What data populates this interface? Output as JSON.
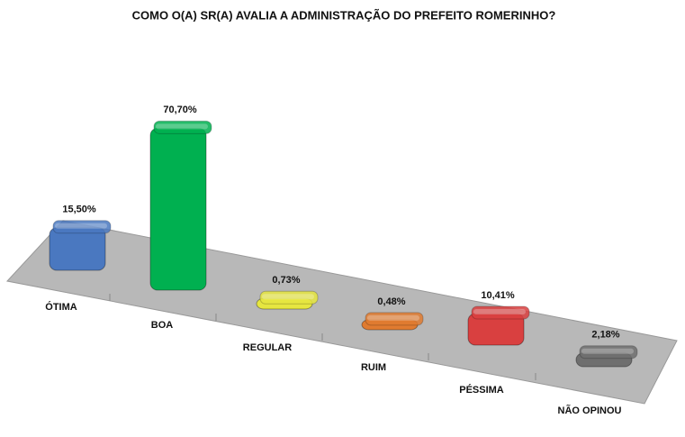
{
  "chart_data": {
    "type": "bar3d",
    "title": "COMO O(A) SR(A) AVALIA A ADMINISTRAÇÃO DO PREFEITO ROMERINHO?",
    "categories": [
      "ÓTIMA",
      "BOA",
      "REGULAR",
      "RUIM",
      "PÉSSIMA",
      "NÃO OPINOU"
    ],
    "values": [
      15.5,
      70.7,
      0.73,
      0.48,
      10.41,
      2.18
    ],
    "value_labels": [
      "15,50%",
      "70,70%",
      "0,73%",
      "0,48%",
      "10,41%",
      "2,18%"
    ],
    "colors": [
      "#4a78c0",
      "#00b050",
      "#e6e640",
      "#e07b30",
      "#d94040",
      "#6f6f6f"
    ]
  }
}
